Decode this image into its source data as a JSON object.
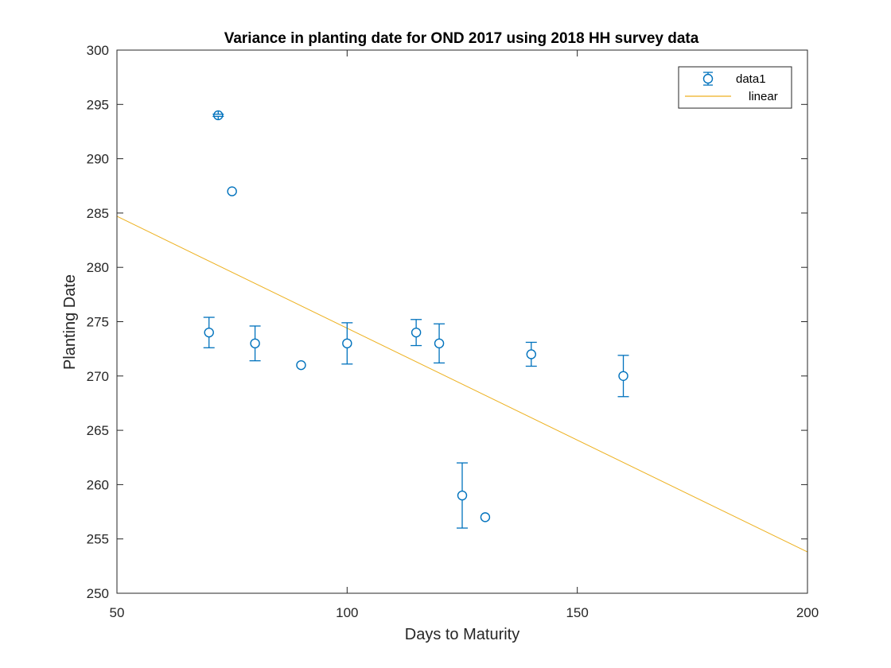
{
  "chart_data": {
    "type": "scatter",
    "title": "Variance in planting date for OND 2017 using 2018 HH survey data",
    "xlabel": "Days to Maturity",
    "ylabel": "Planting Date",
    "xlim": [
      50,
      200
    ],
    "ylim": [
      250,
      300
    ],
    "xticks": [
      50,
      100,
      150,
      200
    ],
    "yticks": [
      250,
      255,
      260,
      265,
      270,
      275,
      280,
      285,
      290,
      295,
      300
    ],
    "grid": false,
    "legend_position": "top-right",
    "series": [
      {
        "name": "data1",
        "kind": "errorbar",
        "marker": "circle",
        "color": "#0072BD",
        "points": [
          {
            "x": 70,
            "y": 274,
            "err": 1.4
          },
          {
            "x": 72,
            "y": 294,
            "err": 0.1
          },
          {
            "x": 75,
            "y": 287,
            "err": 0
          },
          {
            "x": 80,
            "y": 273,
            "err": 1.6
          },
          {
            "x": 90,
            "y": 271,
            "err": 0
          },
          {
            "x": 100,
            "y": 273,
            "err": 1.9
          },
          {
            "x": 115,
            "y": 274,
            "err": 1.2
          },
          {
            "x": 120,
            "y": 273,
            "err": 1.8
          },
          {
            "x": 125,
            "y": 259,
            "err": 3
          },
          {
            "x": 130,
            "y": 257,
            "err": 0
          },
          {
            "x": 140,
            "y": 272,
            "err": 1.1
          },
          {
            "x": 160,
            "y": 270,
            "err": 1.9
          }
        ]
      },
      {
        "name": "linear",
        "kind": "line",
        "color": "#EDB120",
        "x": [
          50,
          200
        ],
        "y": [
          284.7,
          253.8
        ]
      }
    ]
  }
}
